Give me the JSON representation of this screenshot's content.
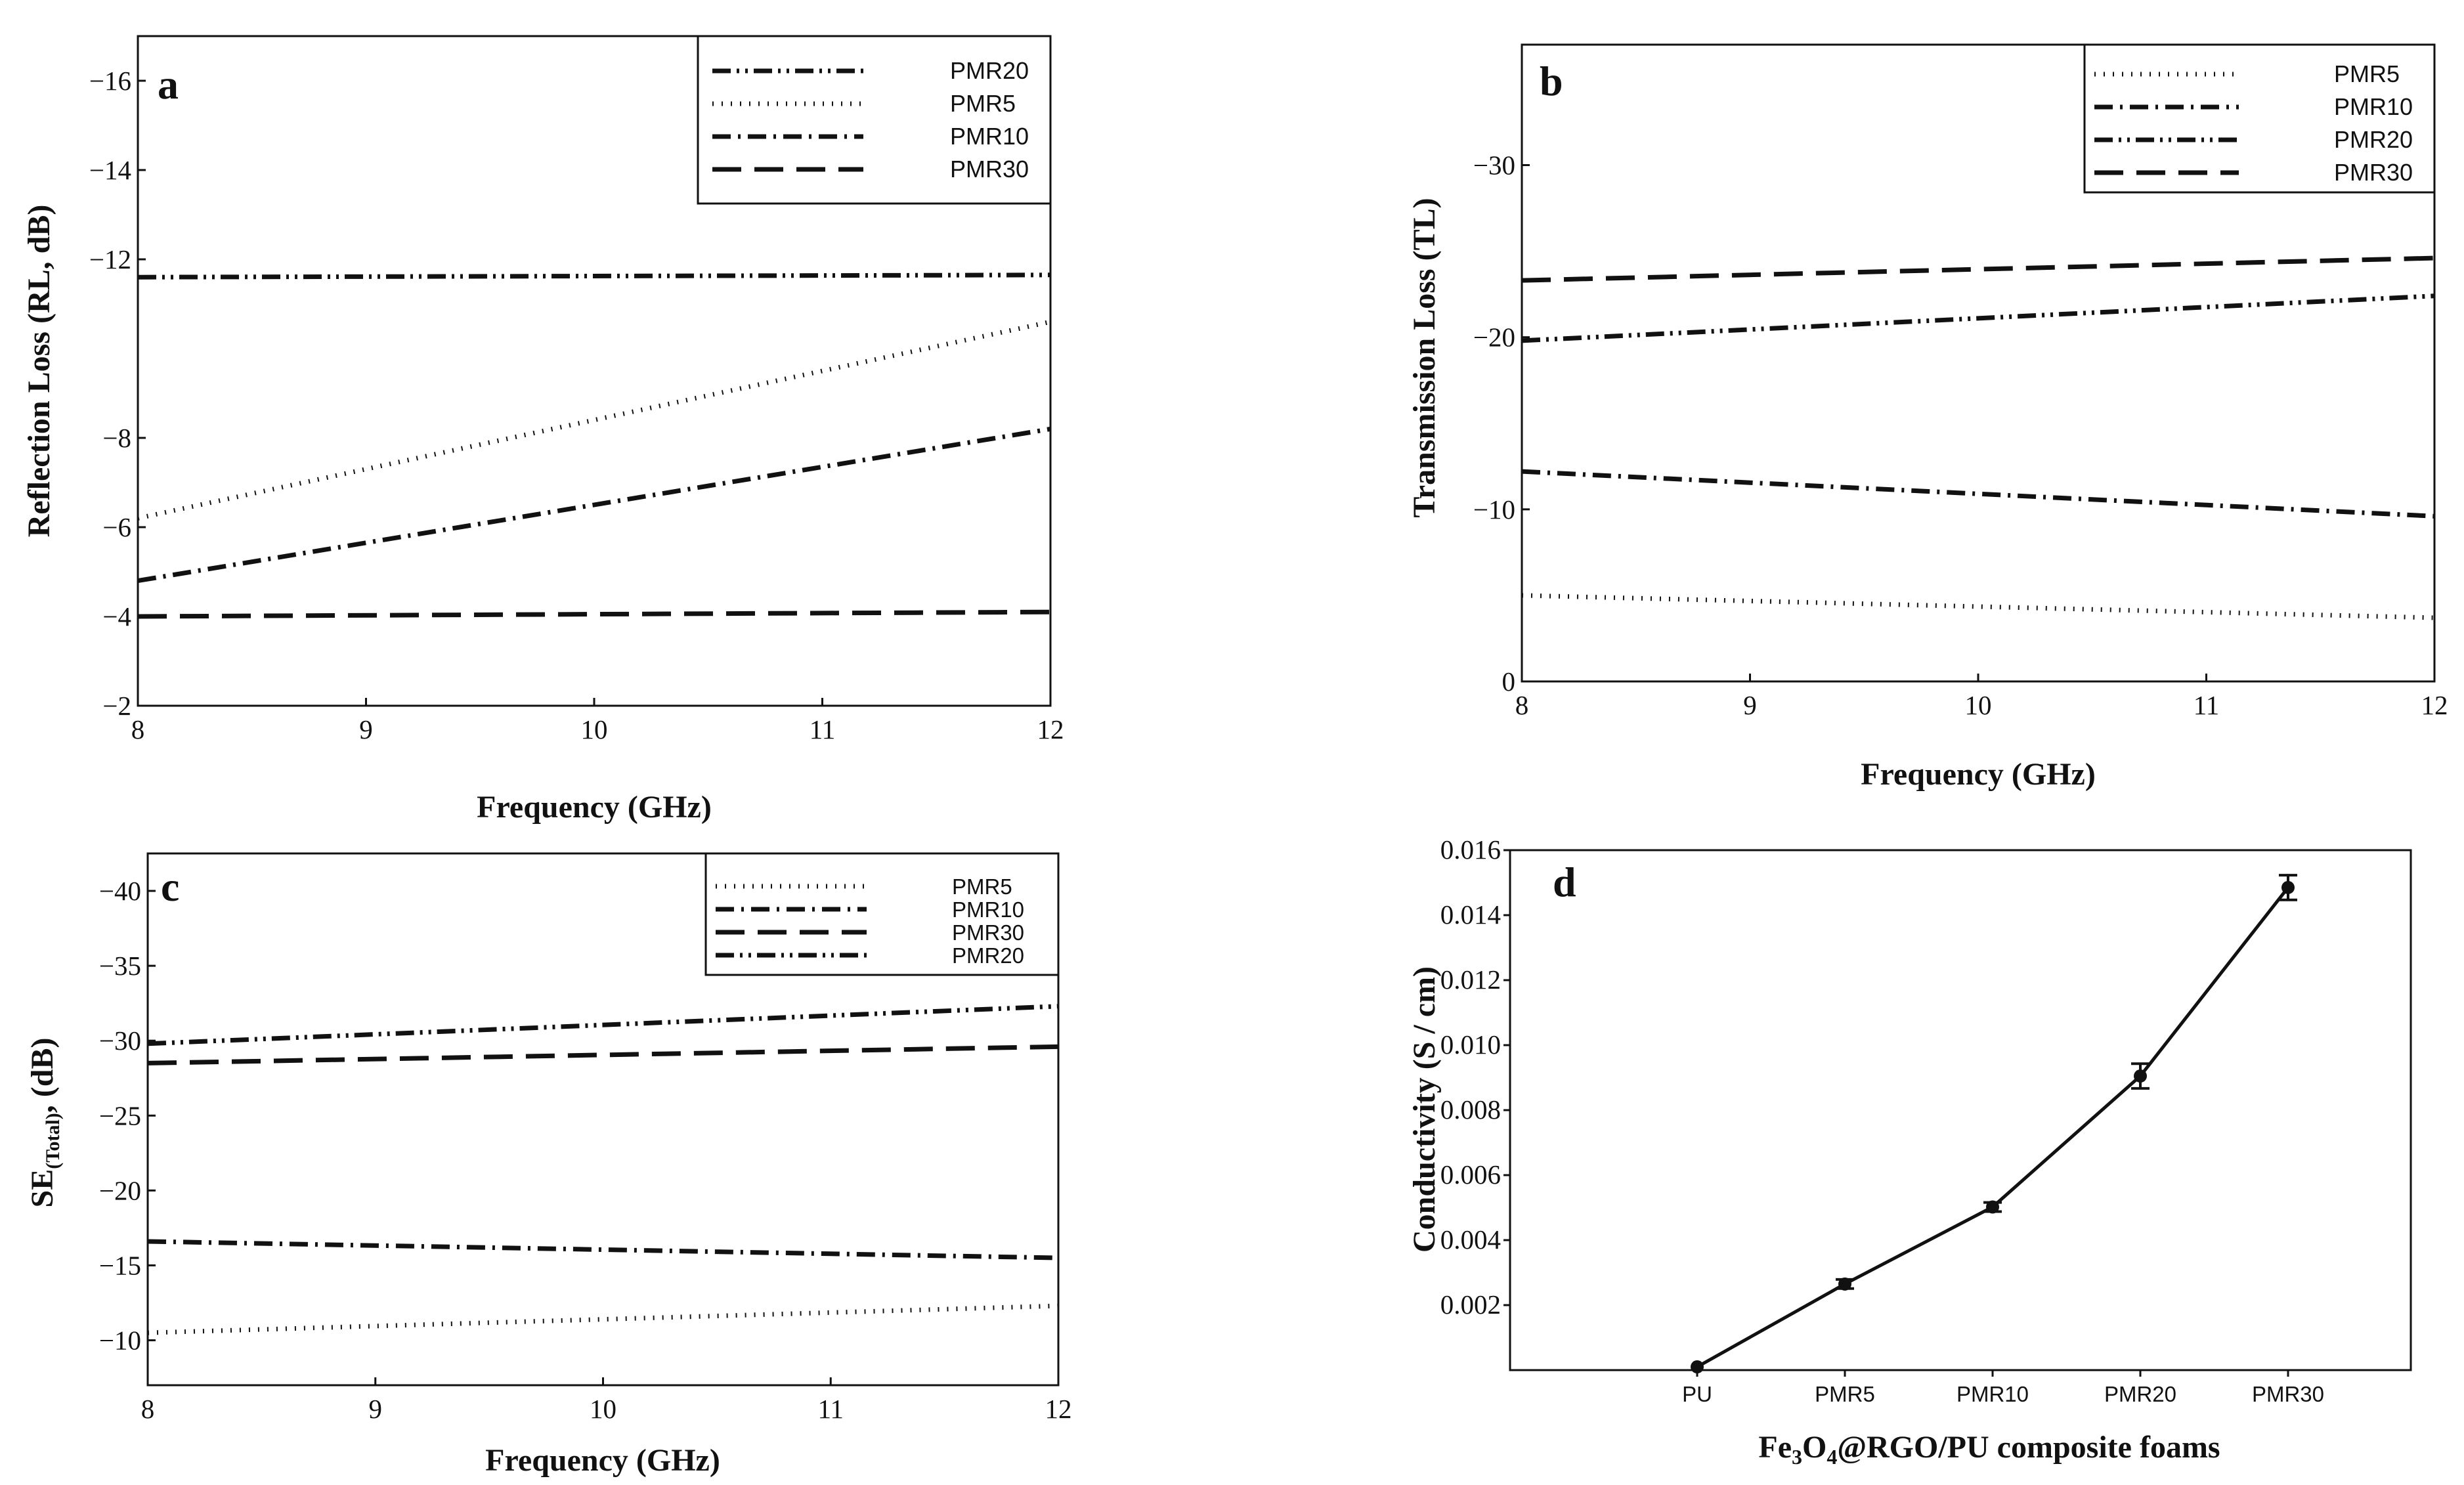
{
  "figure": {
    "description_free": true
  },
  "styles": {
    "PMR5": "2 12",
    "PMR10": "28 11 4 11",
    "PMR20": "28 9 4 9 4 9",
    "PMR30": "44 20"
  },
  "chart_data": [
    {
      "panel": "a",
      "type": "line",
      "xlabel": "Frequency (GHz)",
      "ylabel": "Reflection Loss (RL, dB)",
      "xlim": [
        8,
        12
      ],
      "ylim": [
        -2,
        -17
      ],
      "xticks": [
        8,
        9,
        10,
        11,
        12
      ],
      "yticks": [
        -2,
        -4,
        -6,
        -8,
        -12,
        -14,
        -16
      ],
      "ytick_labels": [
        "−2",
        "−4",
        "−6",
        "−8",
        "−12",
        "−14",
        "−16"
      ],
      "legend": [
        "PMR20",
        "PMR5",
        "PMR10",
        "PMR30"
      ],
      "series": [
        {
          "name": "PMR20",
          "x": [
            8,
            12
          ],
          "y": [
            -11.6,
            -11.65
          ]
        },
        {
          "name": "PMR5",
          "x": [
            8,
            12
          ],
          "y": [
            -6.2,
            -10.6
          ]
        },
        {
          "name": "PMR10",
          "x": [
            8,
            12
          ],
          "y": [
            -4.8,
            -8.2
          ]
        },
        {
          "name": "PMR30",
          "x": [
            8,
            12
          ],
          "y": [
            -4.0,
            -4.1
          ]
        }
      ]
    },
    {
      "panel": "b",
      "type": "line",
      "xlabel": "Frequency (GHz)",
      "ylabel": "Transmission Loss (TL)",
      "xlim": [
        8,
        12
      ],
      "ylim": [
        0,
        -37
      ],
      "xticks": [
        8,
        9,
        10,
        11,
        12
      ],
      "yticks": [
        0,
        -10,
        -20,
        -30
      ],
      "ytick_labels": [
        "0",
        "−10",
        "−20",
        "−30"
      ],
      "legend": [
        "PMR5",
        "PMR10",
        "PMR20",
        "PMR30"
      ],
      "series": [
        {
          "name": "PMR5",
          "x": [
            8,
            12
          ],
          "y": [
            -5.0,
            -3.7
          ]
        },
        {
          "name": "PMR10",
          "x": [
            8,
            12
          ],
          "y": [
            -12.2,
            -9.6
          ]
        },
        {
          "name": "PMR20",
          "x": [
            8,
            12
          ],
          "y": [
            -19.8,
            -22.4
          ]
        },
        {
          "name": "PMR30",
          "x": [
            8,
            12
          ],
          "y": [
            -23.3,
            -24.6
          ]
        }
      ]
    },
    {
      "panel": "c",
      "type": "line",
      "xlabel": "Frequency (GHz)",
      "ylabel_main": "SE",
      "ylabel_sub": "(Total)",
      "ylabel_tail": ", (dB)",
      "xlim": [
        8,
        12
      ],
      "ylim": [
        -7,
        -42.5
      ],
      "xticks": [
        8,
        9,
        10,
        11,
        12
      ],
      "yticks": [
        -10,
        -15,
        -20,
        -25,
        -30,
        -35,
        -40
      ],
      "ytick_labels": [
        "−10",
        "−15",
        "−20",
        "−25",
        "−30",
        "−35",
        "−40"
      ],
      "legend": [
        "PMR5",
        "PMR10",
        "PMR30",
        "PMR20"
      ],
      "series": [
        {
          "name": "PMR5",
          "x": [
            8,
            12
          ],
          "y": [
            -10.5,
            -12.3
          ]
        },
        {
          "name": "PMR10",
          "x": [
            8,
            12
          ],
          "y": [
            -16.6,
            -15.5
          ]
        },
        {
          "name": "PMR30",
          "x": [
            8,
            12
          ],
          "y": [
            -28.5,
            -29.6
          ]
        },
        {
          "name": "PMR20",
          "x": [
            8,
            12
          ],
          "y": [
            -29.8,
            -32.3
          ]
        }
      ]
    },
    {
      "panel": "d",
      "type": "line",
      "xlabel_parts": [
        "Fe",
        "3",
        "O",
        "4",
        "@RGO/PU composite foams"
      ],
      "ylabel": "Conductivity (S / cm)",
      "categories": [
        "PU",
        "PMR5",
        "PMR10",
        "PMR20",
        "PMR30"
      ],
      "values": [
        0.0001,
        0.00265,
        0.00502,
        0.00905,
        0.01485
      ],
      "errors": [
        0.0,
        0.00014,
        0.00014,
        0.00038,
        0.00038
      ],
      "ylim": [
        0,
        0.016
      ],
      "yticks": [
        0.002,
        0.004,
        0.006,
        0.008,
        0.01,
        0.012,
        0.014,
        0.016
      ],
      "ytick_labels": [
        "0.002",
        "0.004",
        "0.006",
        "0.008",
        "0.010",
        "0.012",
        "0.014",
        "0.016"
      ]
    }
  ],
  "panel_labels": [
    "a",
    "b",
    "c",
    "d"
  ]
}
